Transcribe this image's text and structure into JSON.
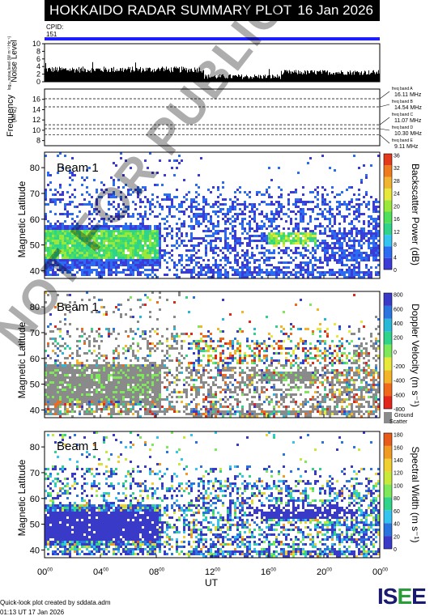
{
  "header": {
    "title": "HOKKAIDO RADAR SUMMARY PLOT",
    "date": "16 Jan 2026",
    "cpid_label": "CPID:",
    "cpid_value": "151"
  },
  "noise_panel": {
    "ylabel": "Noise Level",
    "ylabel_sub": "log₁₀ noise level (W m⁻² Hz⁻¹)",
    "yticks": [
      "0",
      "2",
      "4",
      "6",
      "8",
      "10"
    ]
  },
  "freq_panel": {
    "ylabel": "Frequency",
    "ylabel_unit": "(MHz)",
    "yticks": [
      "8",
      "10",
      "12",
      "14",
      "16"
    ],
    "bands": [
      {
        "name": "freq band A",
        "value": "16.11 MHz"
      },
      {
        "name": "freq band B",
        "value": "14.54 MHz"
      },
      {
        "name": "freq band C",
        "value": "11.07 MHz"
      },
      {
        "name": "freq band D",
        "value": "10.30 MHz"
      },
      {
        "name": "freq band E",
        "value": "9.11 MHz"
      }
    ]
  },
  "panels": [
    {
      "beam": "Beam  1",
      "ylabel": "Magnetic Latitude",
      "cbar_label": "Backscatter Power (dB)",
      "cbar_ticks": [
        "0",
        "4",
        "8",
        "12",
        "16",
        "20",
        "24",
        "28",
        "32",
        "36"
      ]
    },
    {
      "beam": "Beam  1",
      "ylabel": "Magnetic Latitude",
      "cbar_label": "Doppler Velocity (m s⁻¹)",
      "cbar_ticks": [
        "-800",
        "-600",
        "-400",
        "-200",
        "0",
        "200",
        "400",
        "600",
        "800"
      ],
      "ground_scatter": "Ground Scatter"
    },
    {
      "beam": "Beam  1",
      "ylabel": "Magnetic Latitude",
      "cbar_label": "Spectral Width (m s⁻¹)",
      "cbar_ticks": [
        "0",
        "20",
        "40",
        "60",
        "80",
        "100",
        "120",
        "140",
        "160",
        "180"
      ]
    }
  ],
  "xaxis": {
    "label": "UT",
    "ticks": [
      "00",
      "04",
      "08",
      "12",
      "16",
      "20",
      "00"
    ],
    "tick_sup": "00"
  },
  "lat_ticks": [
    "40",
    "50",
    "60",
    "70",
    "80"
  ],
  "footer": {
    "line1": "Quick-look plot created by sddata.adm",
    "line2": "01:13 UT 17 Jan 2026"
  },
  "logo_text": "ISEE",
  "watermark": "NOT FOR PUBLICATION",
  "chart_data": {
    "type": "heatmap",
    "title": "HOKKAIDO RADAR SUMMARY PLOT",
    "xlabel": "UT",
    "ylabel": "Magnetic Latitude",
    "xlim": [
      0,
      24
    ],
    "ylim": [
      37,
      86
    ],
    "frequencies_MHz": [
      16.11,
      14.54,
      11.07,
      10.3,
      9.11
    ],
    "noise_ylim": [
      0,
      10
    ],
    "freq_ylim": [
      7,
      18
    ],
    "power_cbar_range": [
      0,
      36
    ],
    "velocity_cbar_range": [
      -800,
      800
    ],
    "width_cbar_range": [
      0,
      180
    ]
  }
}
